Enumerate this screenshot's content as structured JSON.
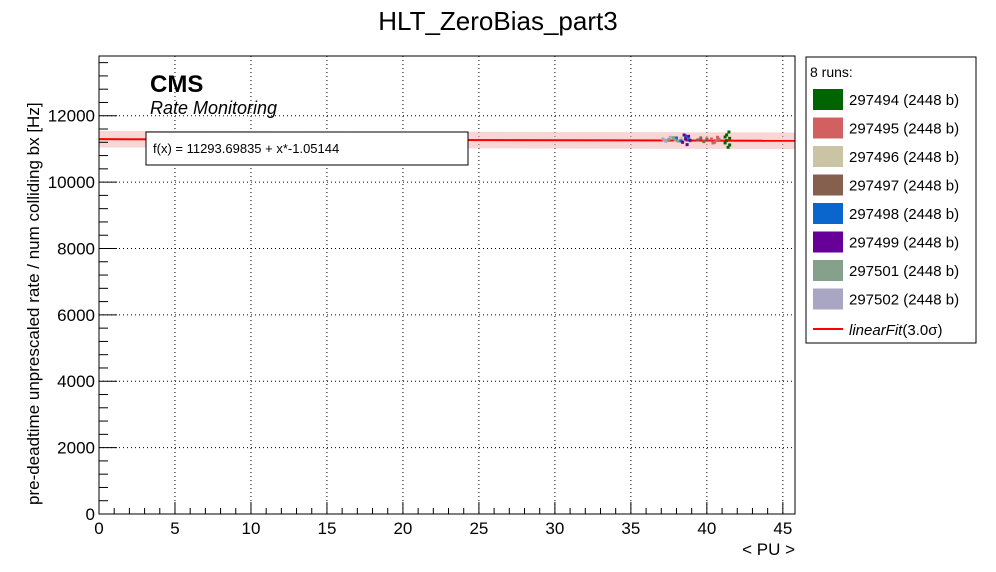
{
  "chart_data": {
    "type": "scatter",
    "title": "HLT_ZeroBias_part3",
    "xlabel": "< PU >",
    "ylabel": "pre-deadtime unprescaled rate / num colliding bx [Hz]",
    "xlim": [
      0,
      45.8
    ],
    "ylim": [
      0,
      13800
    ],
    "x_ticks": [
      "0",
      "5",
      "10",
      "15",
      "20",
      "25",
      "30",
      "35",
      "40",
      "45"
    ],
    "y_ticks": [
      "0",
      "2000",
      "4000",
      "6000",
      "8000",
      "10000",
      "12000"
    ],
    "grid": true,
    "watermark": {
      "title": "CMS",
      "subtitle": "Rate Monitoring"
    },
    "fit": {
      "label": "f(x) = 11293.69835 + x*-1.05144",
      "intercept": 11293.69835,
      "slope": -1.05144,
      "band_sigma": 3.0,
      "band_half_width": 250,
      "color": "#ff0000"
    },
    "legend": {
      "header": "8 runs:",
      "fit_entry": "linearFit(3.0σ)",
      "fit_entry_italic": "linearFit",
      "fit_entry_tail": "(3.0σ)",
      "position": "right"
    },
    "series": [
      {
        "name": "297494 (2448 b)",
        "color": "#006400",
        "points": [
          [
            41.2,
            11180
          ],
          [
            41.3,
            11420
          ],
          [
            41.4,
            11050
          ],
          [
            41.5,
            11320
          ],
          [
            41.3,
            11250
          ],
          [
            41.45,
            11510
          ],
          [
            41.2,
            11360
          ],
          [
            41.5,
            11120
          ]
        ]
      },
      {
        "name": "297495 (2448 b)",
        "color": "#d36060",
        "points": [
          [
            40.3,
            11300
          ],
          [
            40.5,
            11200
          ],
          [
            40.7,
            11350
          ],
          [
            40.6,
            11250
          ],
          [
            40.4,
            11180
          ],
          [
            40.8,
            11290
          ]
        ]
      },
      {
        "name": "297496 (2448 b)",
        "color": "#cbc4a4",
        "points": [
          [
            38.3,
            11320
          ],
          [
            38.5,
            11260
          ],
          [
            38.7,
            11380
          ],
          [
            38.9,
            11230
          ]
        ]
      },
      {
        "name": "297497 (2448 b)",
        "color": "#86604f",
        "points": [
          [
            39.4,
            11270
          ],
          [
            39.6,
            11330
          ],
          [
            39.8,
            11220
          ],
          [
            40.0,
            11300
          ]
        ]
      },
      {
        "name": "297498 (2448 b)",
        "color": "#0a66cc",
        "points": [
          [
            38.0,
            11330
          ],
          [
            38.3,
            11240
          ],
          [
            38.6,
            11390
          ],
          [
            38.8,
            11280
          ]
        ]
      },
      {
        "name": "297499 (2448 b)",
        "color": "#660099",
        "points": [
          [
            38.5,
            11420
          ],
          [
            38.7,
            11130
          ],
          [
            38.9,
            11260
          ],
          [
            38.6,
            11300
          ],
          [
            38.8,
            11380
          ],
          [
            38.4,
            11200
          ]
        ]
      },
      {
        "name": "297501 (2448 b)",
        "color": "#85a08b",
        "points": [
          [
            37.5,
            11290
          ],
          [
            37.8,
            11340
          ],
          [
            38.1,
            11240
          ],
          [
            37.9,
            11270
          ]
        ]
      },
      {
        "name": "297502 (2448 b)",
        "color": "#a9a6c3",
        "points": [
          [
            37.1,
            11300
          ],
          [
            37.3,
            11230
          ],
          [
            37.6,
            11350
          ],
          [
            37.2,
            11270
          ]
        ]
      }
    ]
  }
}
